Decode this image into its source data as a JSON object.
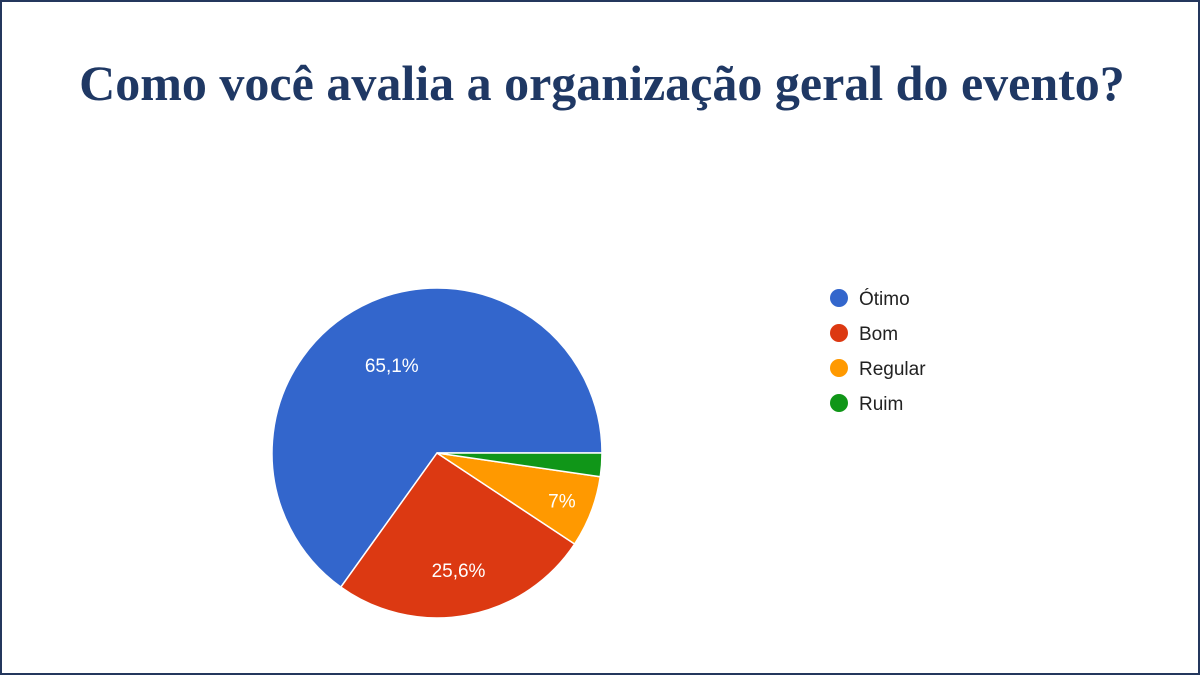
{
  "chart_data": {
    "type": "pie",
    "title": "Como você avalia a organização geral do evento?",
    "categories": [
      "Ótimo",
      "Bom",
      "Regular",
      "Ruim"
    ],
    "values": [
      65.1,
      25.6,
      7.0,
      2.3
    ],
    "data_labels": [
      "65,1%",
      "25,6%",
      "7%",
      ""
    ],
    "colors": [
      "#3366cc",
      "#dc3912",
      "#ff9900",
      "#109618"
    ],
    "legend_position": "right"
  }
}
